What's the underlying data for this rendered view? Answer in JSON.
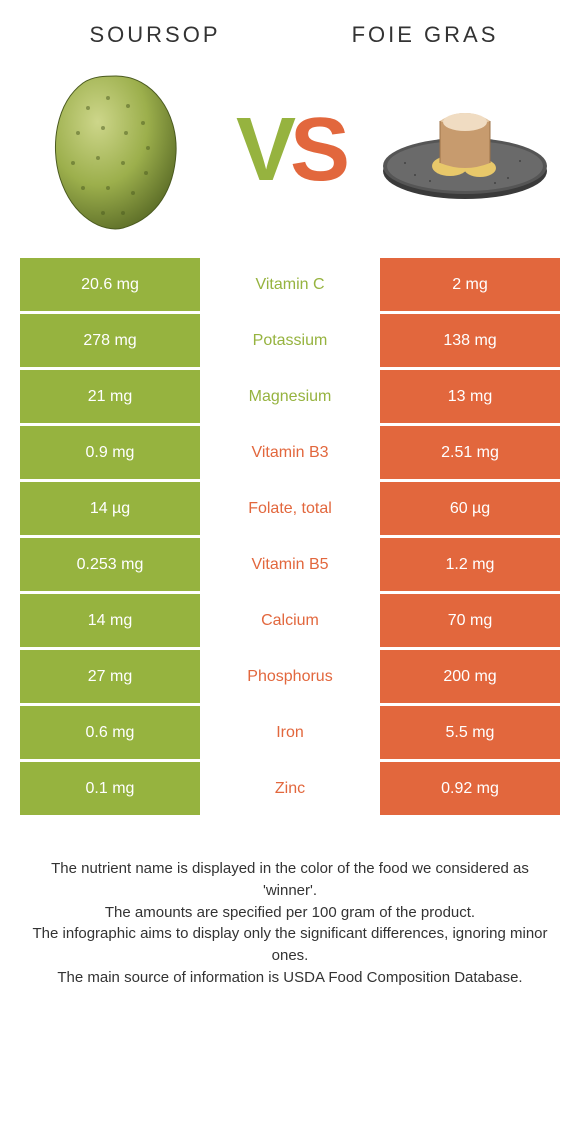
{
  "colors": {
    "left": "#96b33f",
    "right": "#e2673d",
    "row_gap": "#ffffff"
  },
  "food_left": {
    "title": "SOURSOP"
  },
  "food_right": {
    "title": "FOIE GRAS"
  },
  "vs": {
    "v": "V",
    "s": "S"
  },
  "nutrients": [
    {
      "name": "Vitamin C",
      "left": "20.6 mg",
      "right": "2 mg",
      "winner": "left"
    },
    {
      "name": "Potassium",
      "left": "278 mg",
      "right": "138 mg",
      "winner": "left"
    },
    {
      "name": "Magnesium",
      "left": "21 mg",
      "right": "13 mg",
      "winner": "left"
    },
    {
      "name": "Vitamin B3",
      "left": "0.9 mg",
      "right": "2.51 mg",
      "winner": "right"
    },
    {
      "name": "Folate, total",
      "left": "14 µg",
      "right": "60 µg",
      "winner": "right"
    },
    {
      "name": "Vitamin B5",
      "left": "0.253 mg",
      "right": "1.2 mg",
      "winner": "right"
    },
    {
      "name": "Calcium",
      "left": "14 mg",
      "right": "70 mg",
      "winner": "right"
    },
    {
      "name": "Phosphorus",
      "left": "27 mg",
      "right": "200 mg",
      "winner": "right"
    },
    {
      "name": "Iron",
      "left": "0.6 mg",
      "right": "5.5 mg",
      "winner": "right"
    },
    {
      "name": "Zinc",
      "left": "0.1 mg",
      "right": "0.92 mg",
      "winner": "right"
    }
  ],
  "footer_lines": [
    "The nutrient name is displayed in the color of the food we considered as 'winner'.",
    "The amounts are specified per 100 gram of the product.",
    "The infographic aims to display only the significant differences, ignoring minor ones.",
    "The main source of information is USDA Food Composition Database."
  ]
}
